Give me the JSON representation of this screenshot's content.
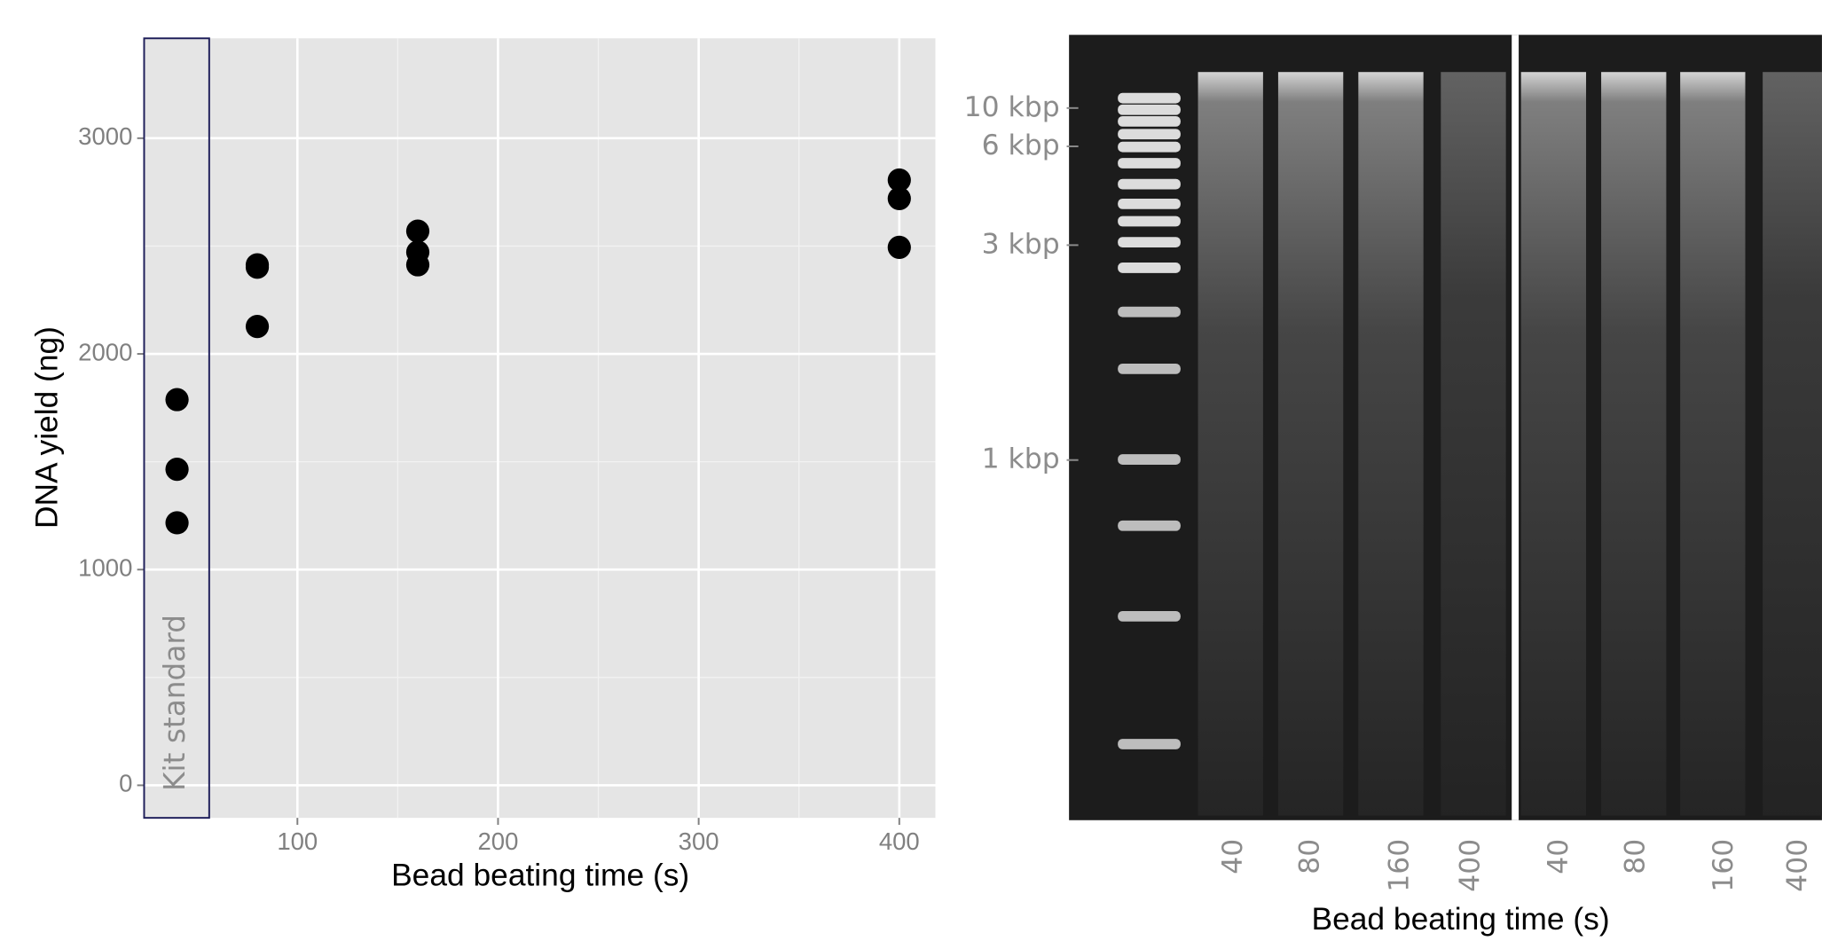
{
  "chart_data": {
    "type": "scatter",
    "x_label": "Bead beating time (s)",
    "y_label": "DNA yield (ng)",
    "annotation": "Kit standard",
    "x": [
      40,
      40,
      40,
      80,
      80,
      80,
      160,
      160,
      160,
      400,
      400,
      400
    ],
    "values": [
      1788,
      1465,
      1217,
      2413,
      2402,
      2127,
      2569,
      2472,
      2413,
      2806,
      2720,
      2494
    ],
    "color": "#000000",
    "xlim": [
      23.6,
      418
    ],
    "xticks": [
      100,
      200,
      300,
      400
    ],
    "x_minor_grid": [
      150,
      250,
      350
    ],
    "ylim": [
      -151,
      3463
    ],
    "yticks": [
      0,
      1000,
      2000,
      3000
    ],
    "y_minor_grid": [
      500,
      1500,
      2500
    ],
    "grid": true
  },
  "gel_image": {
    "size_markers": [
      "10 kbp",
      "6 kbp",
      "3 kbp",
      "1 kbp"
    ],
    "lane_labels": [
      "40",
      "80",
      "160",
      "400",
      "40",
      "80",
      "160",
      "400"
    ],
    "x_label": "Bead beating time (s)"
  }
}
